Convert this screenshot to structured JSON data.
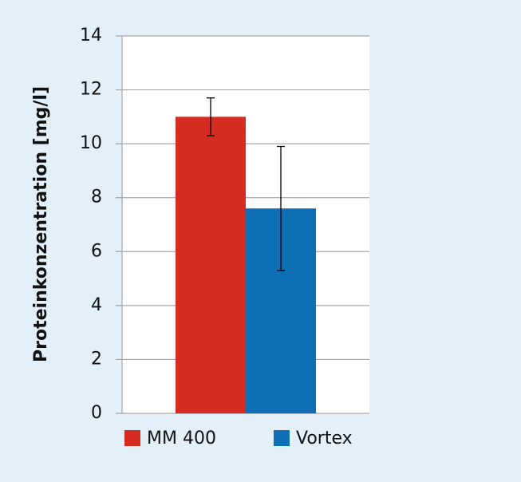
{
  "chart_data": {
    "type": "bar",
    "y_label": "Proteinkonzentration [mg/l]",
    "categories": [
      null
    ],
    "series": [
      {
        "name": "MM 400",
        "color": "#d52b20",
        "values": [
          11.0
        ],
        "errors": [
          0.7
        ]
      },
      {
        "name": "Vortex",
        "color": "#0f6fb5",
        "values": [
          7.6
        ],
        "errors": [
          2.3
        ]
      }
    ],
    "ylim": [
      0,
      14
    ],
    "yticks": [
      0,
      2,
      4,
      6,
      8,
      10,
      12,
      14
    ],
    "grid": true,
    "legend": "bottom"
  }
}
